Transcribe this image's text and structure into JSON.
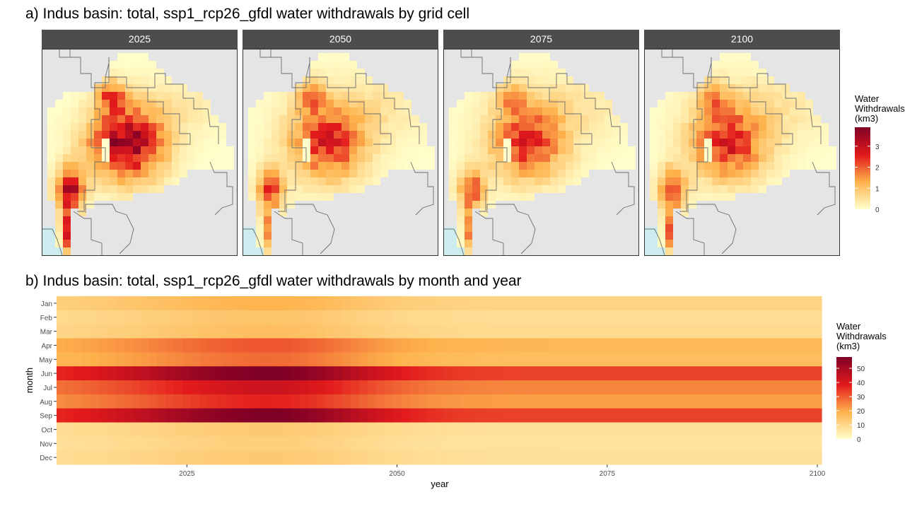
{
  "chart_data": [
    {
      "type": "heatmap",
      "title": "a) Indus basin: total, ssp1_rcp26_gfdl  water withdrawals by grid cell",
      "facets": [
        "2025",
        "2050",
        "2075",
        "2100"
      ],
      "legend_title": [
        "Water",
        "Withdrawals",
        "(km3)"
      ],
      "legend_ticks": [
        0,
        1,
        2,
        3
      ],
      "value_range": [
        0,
        3.9
      ],
      "scale_colors": [
        "#ffffcc",
        "#feb24c",
        "#e31a1c",
        "#800026"
      ],
      "panel_background": "#e5e5e5",
      "sea_color": "#cdecef",
      "facet_peak_multipliers": [
        1.0,
        0.7,
        0.66,
        0.7
      ]
    },
    {
      "type": "heatmap",
      "title": "b) Indus basin: total, ssp1_rcp26_gfdl  water withdrawals by month and year",
      "xlabel": "year",
      "ylabel": "month",
      "months": [
        "Jan",
        "Feb",
        "Mar",
        "Apr",
        "May",
        "Jun",
        "Jul",
        "Aug",
        "Sep",
        "Oct",
        "Nov",
        "Dec"
      ],
      "x_ticks": [
        2025,
        2050,
        2075,
        2100
      ],
      "xlim": [
        2010,
        2100
      ],
      "monthly_base_km3": [
        14,
        11,
        12,
        23,
        21,
        43,
        32,
        28,
        43,
        10,
        9,
        10
      ],
      "peak_year": 2035,
      "peak_scale": 1.35,
      "legend_title": [
        "Water",
        "Withdrawals",
        "(km3)"
      ],
      "legend_ticks": [
        0,
        10,
        20,
        30,
        40,
        50
      ],
      "value_range": [
        0,
        58
      ],
      "scale_colors": [
        "#ffffcc",
        "#feb24c",
        "#e31a1c",
        "#800026"
      ]
    }
  ]
}
